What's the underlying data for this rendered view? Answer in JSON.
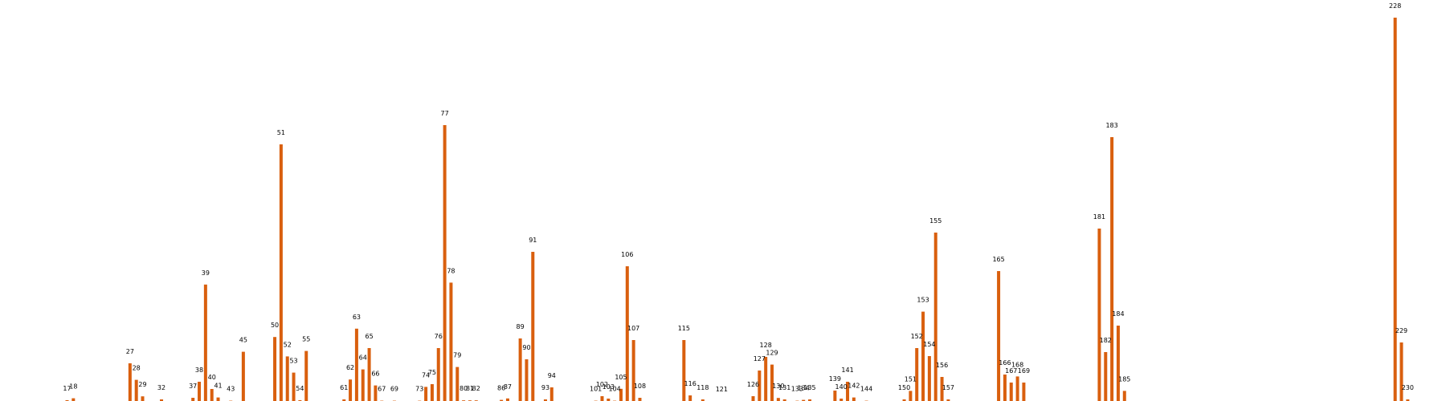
{
  "chart_data": {
    "type": "bar",
    "title": "",
    "xlabel": "",
    "ylabel": "",
    "grid": false,
    "x_range": [
      0,
      235
    ],
    "ylim": [
      0,
      250
    ],
    "bar_color": "#d95f0e",
    "points": [
      {
        "x": 17,
        "label": "17",
        "value": 1.5
      },
      {
        "x": 18,
        "label": "18",
        "value": 2.7
      },
      {
        "x": 27,
        "label": "27",
        "value": 24.5
      },
      {
        "x": 28,
        "label": "28",
        "value": 14.2
      },
      {
        "x": 29,
        "label": "29",
        "value": 3.9
      },
      {
        "x": 32,
        "label": "32",
        "value": 2.0
      },
      {
        "x": 37,
        "label": "37",
        "value": 3.0
      },
      {
        "x": 38,
        "label": "38",
        "value": 13.0
      },
      {
        "x": 39,
        "label": "39",
        "value": 73.6
      },
      {
        "x": 40,
        "label": "40",
        "value": 8.5
      },
      {
        "x": 41,
        "label": "41",
        "value": 3.2
      },
      {
        "x": 43,
        "label": "43",
        "value": 1.2
      },
      {
        "x": 45,
        "label": "45",
        "value": 31.7
      },
      {
        "x": 50,
        "label": "50",
        "value": 40.9
      },
      {
        "x": 51,
        "label": "51",
        "value": 161.0
      },
      {
        "x": 52,
        "label": "52",
        "value": 28.8
      },
      {
        "x": 53,
        "label": "53",
        "value": 18.7
      },
      {
        "x": 54,
        "label": "54",
        "value": 1.5
      },
      {
        "x": 55,
        "label": "55",
        "value": 32.2
      },
      {
        "x": 61,
        "label": "61",
        "value": 2.0
      },
      {
        "x": 62,
        "label": "62",
        "value": 14.4
      },
      {
        "x": 63,
        "label": "63",
        "value": 46.1
      },
      {
        "x": 64,
        "label": "64",
        "value": 20.7
      },
      {
        "x": 65,
        "label": "65",
        "value": 34.0
      },
      {
        "x": 66,
        "label": "66",
        "value": 10.7
      },
      {
        "x": 67,
        "label": "67",
        "value": 1.2
      },
      {
        "x": 69,
        "label": "69",
        "value": 1.2
      },
      {
        "x": 73,
        "label": "73",
        "value": 1.2
      },
      {
        "x": 74,
        "label": "74",
        "value": 9.8
      },
      {
        "x": 75,
        "label": "75",
        "value": 11.5
      },
      {
        "x": 76,
        "label": "76",
        "value": 34.0
      },
      {
        "x": 77,
        "label": "77",
        "value": 173.0
      },
      {
        "x": 78,
        "label": "78",
        "value": 74.8
      },
      {
        "x": 79,
        "label": "79",
        "value": 22.2
      },
      {
        "x": 80,
        "label": "80",
        "value": 1.4
      },
      {
        "x": 81,
        "label": "81",
        "value": 1.4
      },
      {
        "x": 82,
        "label": "82",
        "value": 1.4
      },
      {
        "x": 86,
        "label": "86",
        "value": 1.7
      },
      {
        "x": 87,
        "label": "87",
        "value": 2.6
      },
      {
        "x": 89,
        "label": "89",
        "value": 40.0
      },
      {
        "x": 90,
        "label": "90",
        "value": 27.0
      },
      {
        "x": 91,
        "label": "91",
        "value": 94.0
      },
      {
        "x": 93,
        "label": "93",
        "value": 2.0
      },
      {
        "x": 94,
        "label": "94",
        "value": 9.5
      },
      {
        "x": 101,
        "label": "101",
        "value": 1.2
      },
      {
        "x": 102,
        "label": "102",
        "value": 4.0
      },
      {
        "x": 103,
        "label": "103",
        "value": 2.5
      },
      {
        "x": 104,
        "label": "104",
        "value": 1.2
      },
      {
        "x": 105,
        "label": "105",
        "value": 8.6
      },
      {
        "x": 106,
        "label": "106",
        "value": 85.0
      },
      {
        "x": 107,
        "label": "107",
        "value": 39.0
      },
      {
        "x": 108,
        "label": "108",
        "value": 3.0
      },
      {
        "x": 115,
        "label": "115",
        "value": 39.0
      },
      {
        "x": 116,
        "label": "116",
        "value": 4.5
      },
      {
        "x": 118,
        "label": "118",
        "value": 2.0
      },
      {
        "x": 121,
        "label": "121",
        "value": 0.9
      },
      {
        "x": 126,
        "label": "126",
        "value": 4.0
      },
      {
        "x": 127,
        "label": "127",
        "value": 20.0
      },
      {
        "x": 128,
        "label": "128",
        "value": 28.5
      },
      {
        "x": 129,
        "label": "129",
        "value": 23.7
      },
      {
        "x": 130,
        "label": "130",
        "value": 2.9
      },
      {
        "x": 131,
        "label": "131",
        "value": 2.0
      },
      {
        "x": 133,
        "label": "133",
        "value": 1.2
      },
      {
        "x": 134,
        "label": "134",
        "value": 1.7
      },
      {
        "x": 135,
        "label": "135",
        "value": 2.0
      },
      {
        "x": 139,
        "label": "139",
        "value": 7.5
      },
      {
        "x": 140,
        "label": "140",
        "value": 2.5
      },
      {
        "x": 141,
        "label": "141",
        "value": 13.0
      },
      {
        "x": 142,
        "label": "142",
        "value": 3.2
      },
      {
        "x": 144,
        "label": "144",
        "value": 1.2
      },
      {
        "x": 150,
        "label": "150",
        "value": 2.0
      },
      {
        "x": 151,
        "label": "151",
        "value": 7.3
      },
      {
        "x": 152,
        "label": "152",
        "value": 34.0
      },
      {
        "x": 153,
        "label": "153",
        "value": 56.7
      },
      {
        "x": 154,
        "label": "154",
        "value": 29.0
      },
      {
        "x": 155,
        "label": "155",
        "value": 106.0
      },
      {
        "x": 156,
        "label": "156",
        "value": 16.0
      },
      {
        "x": 157,
        "label": "157",
        "value": 2.0
      },
      {
        "x": 165,
        "label": "165",
        "value": 82.0
      },
      {
        "x": 166,
        "label": "166",
        "value": 17.5
      },
      {
        "x": 167,
        "label": "167",
        "value": 12.5
      },
      {
        "x": 168,
        "label": "168",
        "value": 16.3
      },
      {
        "x": 169,
        "label": "169",
        "value": 12.5
      },
      {
        "x": 181,
        "label": "181",
        "value": 108.5
      },
      {
        "x": 182,
        "label": "182",
        "value": 31.5
      },
      {
        "x": 183,
        "label": "183",
        "value": 165.5
      },
      {
        "x": 184,
        "label": "184",
        "value": 48.0
      },
      {
        "x": 185,
        "label": "185",
        "value": 7.3
      },
      {
        "x": 228,
        "label": "228",
        "value": 240.0
      },
      {
        "x": 229,
        "label": "229",
        "value": 37.5
      },
      {
        "x": 230,
        "label": "230",
        "value": 2.0
      }
    ]
  }
}
